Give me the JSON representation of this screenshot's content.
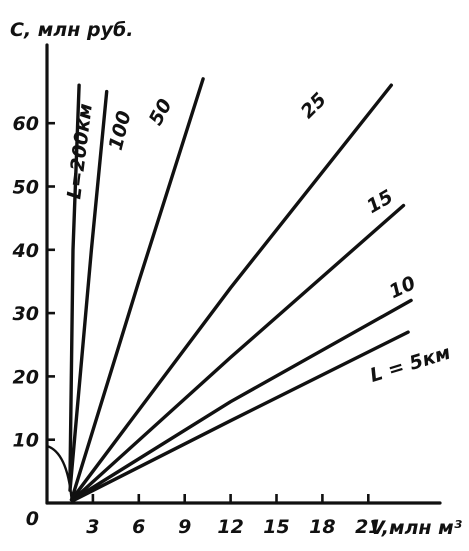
{
  "chart_data": {
    "type": "line",
    "title": "",
    "ylabel": "C, млн руб.",
    "xlabel": "V,млн м³",
    "xlim": [
      0,
      24
    ],
    "ylim": [
      0,
      67
    ],
    "x_ticks": [
      3,
      6,
      9,
      12,
      15,
      18,
      21
    ],
    "y_ticks": [
      0,
      10,
      20,
      30,
      40,
      50,
      60
    ],
    "grid": false,
    "legend": "none",
    "series": [
      {
        "name": "L=200км",
        "x": [
          1.5,
          1.7,
          2.1
        ],
        "y": [
          4,
          40,
          66
        ]
      },
      {
        "name": "100",
        "x": [
          1.5,
          2.9,
          3.9
        ],
        "y": [
          2,
          40,
          65
        ]
      },
      {
        "name": "50",
        "x": [
          1.6,
          6.0,
          10.2
        ],
        "y": [
          0.5,
          35,
          67
        ]
      },
      {
        "name": "25",
        "x": [
          1.6,
          12.0,
          22.5
        ],
        "y": [
          0.5,
          34,
          66
        ]
      },
      {
        "name": "15",
        "x": [
          1.7,
          12.0,
          23.3
        ],
        "y": [
          0.5,
          23,
          47
        ]
      },
      {
        "name": "10",
        "x": [
          1.7,
          12.0,
          23.8
        ],
        "y": [
          0.5,
          16,
          32
        ]
      },
      {
        "name": "L = 5км",
        "x": [
          1.8,
          12.0,
          23.6
        ],
        "y": [
          0.5,
          13,
          27
        ]
      }
    ]
  }
}
